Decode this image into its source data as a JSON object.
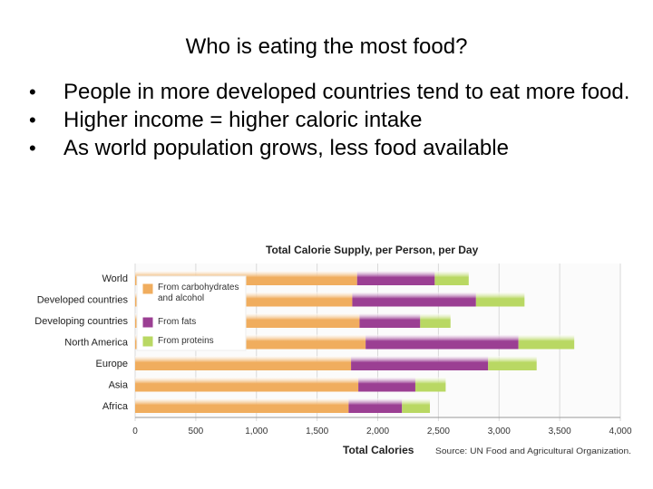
{
  "slide": {
    "title": "Who is eating the most food?",
    "bullet_char": "•",
    "bullets": [
      "People in more developed countries tend to eat more food.",
      "Higher income = higher caloric intake",
      "As world population grows, less food available"
    ]
  },
  "chart_data": {
    "type": "bar",
    "orientation": "horizontal",
    "stacked": true,
    "title": "Total Calorie Supply, per Person, per Day",
    "xlabel": "Total Calories",
    "source": "Source: UN Food and Agricultural Organization.",
    "xlim": [
      0,
      4000
    ],
    "xticks": [
      "0",
      "500",
      "1,000",
      "1,500",
      "2,000",
      "2,500",
      "3,000",
      "3,500",
      "4,000"
    ],
    "xtick_values": [
      0,
      500,
      1000,
      1500,
      2000,
      2500,
      3000,
      3500,
      4000
    ],
    "categories": [
      "World",
      "Developed countries",
      "Developing countries",
      "North America",
      "Europe",
      "Asia",
      "Africa"
    ],
    "series": [
      {
        "name": "From carbohydrates and alcohol",
        "color": "#f0ad5e",
        "values": [
          1830,
          1790,
          1850,
          1900,
          1780,
          1840,
          1760
        ]
      },
      {
        "name": "From fats",
        "color": "#9b3f93",
        "values": [
          640,
          1020,
          500,
          1260,
          1130,
          470,
          440
        ]
      },
      {
        "name": "From proteins",
        "color": "#b9d863",
        "values": [
          280,
          400,
          250,
          460,
          400,
          250,
          230
        ]
      }
    ],
    "legend": {
      "placement": "upper-left",
      "entries": [
        {
          "lines": [
            "From carbohydrates",
            "and alcohol"
          ]
        },
        {
          "lines": [
            "From fats"
          ]
        },
        {
          "lines": [
            "From proteins"
          ]
        }
      ]
    },
    "grid": true
  }
}
